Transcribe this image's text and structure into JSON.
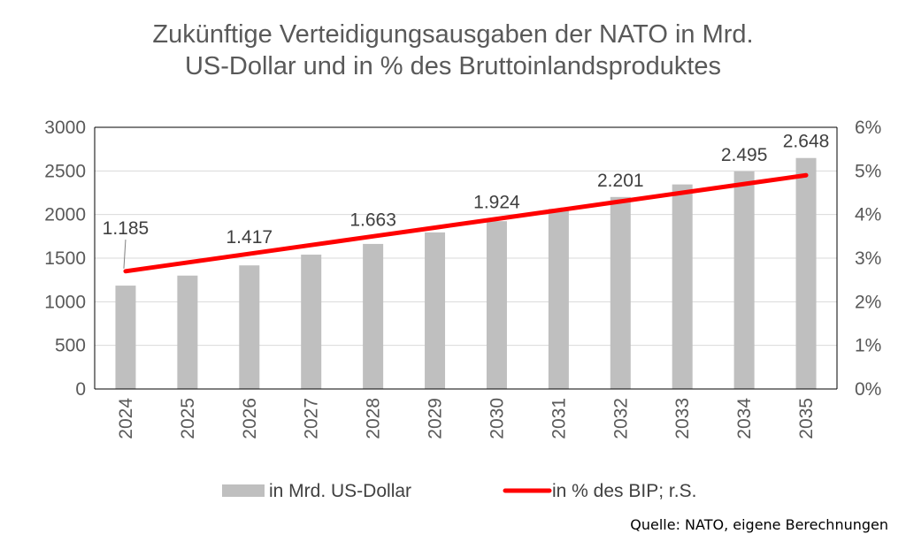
{
  "chart_data": {
    "type": "bar+line",
    "title_lines": [
      "Zukünftige Verteidigungsausgaben der NATO in Mrd.",
      "US-Dollar und in % des Bruttoinlandsproduktes"
    ],
    "categories": [
      "2024",
      "2025",
      "2026",
      "2027",
      "2028",
      "2029",
      "2030",
      "2031",
      "2032",
      "2033",
      "2034",
      "2035"
    ],
    "series": [
      {
        "name": "in Mrd. US-Dollar",
        "type": "bar",
        "axis": "left",
        "color": "#bfbfbf",
        "values": [
          1185,
          1300,
          1417,
          1540,
          1663,
          1795,
          1924,
          2065,
          2201,
          2345,
          2495,
          2648
        ],
        "data_labels": [
          "1.185",
          null,
          "1.417",
          null,
          "1.663",
          null,
          "1.924",
          null,
          "2.201",
          null,
          "2.495",
          "2.648"
        ]
      },
      {
        "name": "in % des BIP; r.S.",
        "type": "line",
        "axis": "right",
        "color": "#ff0000",
        "values": [
          2.7,
          2.9,
          3.1,
          3.3,
          3.5,
          3.7,
          3.9,
          4.1,
          4.3,
          4.5,
          4.7,
          4.9
        ]
      }
    ],
    "y_left": {
      "min": 0,
      "max": 3000,
      "ticks": [
        0,
        500,
        1000,
        1500,
        2000,
        2500,
        3000
      ],
      "tick_labels": [
        "0",
        "500",
        "1000",
        "1500",
        "2000",
        "2500",
        "3000"
      ]
    },
    "y_right": {
      "min": 0,
      "max": 6,
      "ticks": [
        0,
        1,
        2,
        3,
        4,
        5,
        6
      ],
      "tick_labels": [
        "0%",
        "1%",
        "2%",
        "3%",
        "4%",
        "5%",
        "6%"
      ]
    },
    "grid": true,
    "legend_position": "bottom"
  },
  "source_text": "Quelle: NATO, eigene Berechnungen"
}
